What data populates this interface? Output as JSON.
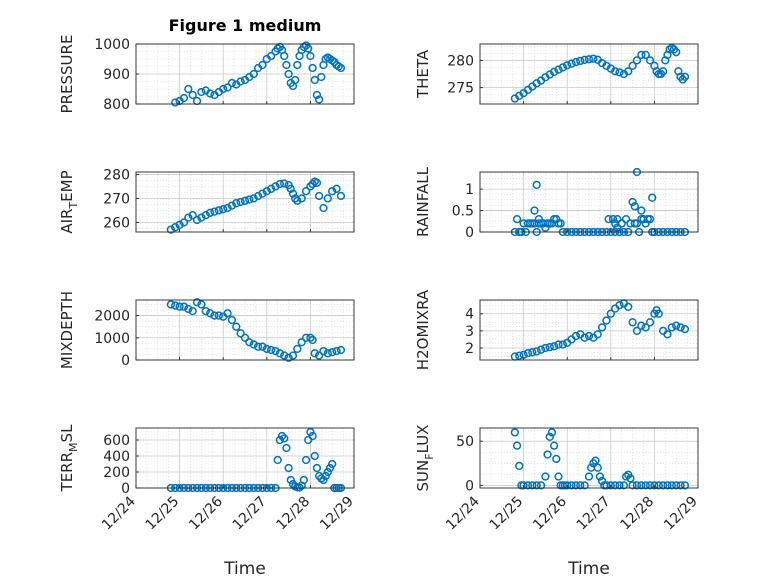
{
  "figure_title": "Figure 1 medium",
  "marker_color": "#0072BD",
  "x_axis": {
    "label": "Time",
    "ticks": [
      "12/24",
      "12/25",
      "12/26",
      "12/27",
      "12/28",
      "12/29"
    ],
    "range": [
      0,
      5
    ]
  },
  "chart_data": [
    {
      "type": "scatter",
      "ylabel": "PRESSURE",
      "ylim": [
        800,
        1000
      ],
      "yticks": [
        "800",
        "900",
        "1000"
      ],
      "grid": true,
      "series": [
        {
          "x": [
            0.9,
            1.0,
            1.1,
            1.2,
            1.3,
            1.4,
            1.5,
            1.6,
            1.7,
            1.8,
            1.9,
            2.0,
            2.1,
            2.2,
            2.3,
            2.4,
            2.5,
            2.6,
            2.7,
            2.8,
            2.9,
            3.0,
            3.1,
            3.2,
            3.25,
            3.3,
            3.35,
            3.4,
            3.45,
            3.5,
            3.55,
            3.6,
            3.65,
            3.7,
            3.75,
            3.8,
            3.85,
            3.9,
            3.95,
            4.0,
            4.05,
            4.1,
            4.15,
            4.2,
            4.25,
            4.3,
            4.35,
            4.4,
            4.45,
            4.5,
            4.55,
            4.6,
            4.65,
            4.7
          ],
          "values": [
            805,
            810,
            820,
            850,
            830,
            810,
            840,
            845,
            835,
            830,
            840,
            850,
            855,
            870,
            865,
            875,
            880,
            890,
            900,
            920,
            930,
            950,
            960,
            975,
            985,
            990,
            980,
            960,
            930,
            900,
            870,
            860,
            880,
            930,
            960,
            980,
            990,
            995,
            985,
            960,
            920,
            880,
            830,
            815,
            890,
            930,
            950,
            955,
            950,
            945,
            940,
            930,
            925,
            920
          ]
        }
      ]
    },
    {
      "type": "scatter",
      "ylabel": "THETA",
      "ylim": [
        272,
        283
      ],
      "yticks": [
        "275",
        "280"
      ],
      "grid": true,
      "series": [
        {
          "x": [
            0.8,
            0.9,
            1.0,
            1.1,
            1.2,
            1.3,
            1.4,
            1.5,
            1.6,
            1.7,
            1.8,
            1.9,
            2.0,
            2.1,
            2.2,
            2.3,
            2.4,
            2.5,
            2.6,
            2.7,
            2.8,
            2.9,
            3.0,
            3.1,
            3.2,
            3.3,
            3.4,
            3.5,
            3.6,
            3.7,
            3.8,
            3.9,
            4.0,
            4.05,
            4.1,
            4.15,
            4.2,
            4.25,
            4.3,
            4.35,
            4.4,
            4.45,
            4.5,
            4.55,
            4.6,
            4.65,
            4.7
          ],
          "values": [
            273,
            273.5,
            274,
            274.6,
            275.2,
            275.8,
            276.3,
            276.9,
            277.4,
            277.9,
            278.3,
            278.7,
            279.1,
            279.4,
            279.7,
            279.9,
            280.1,
            280.2,
            280.3,
            280.1,
            279.5,
            279,
            278.5,
            278,
            277.8,
            277.5,
            278,
            279,
            280,
            281,
            281,
            280,
            279,
            278,
            277.5,
            277.5,
            278,
            280,
            281,
            282,
            282.3,
            282,
            281.5,
            278,
            277,
            276.5,
            277
          ]
        }
      ]
    },
    {
      "type": "scatter",
      "ylabel": "AIR_TEMP",
      "ylim": [
        256,
        281
      ],
      "yticks": [
        "260",
        "270",
        "280"
      ],
      "grid": true,
      "series": [
        {
          "x": [
            0.8,
            0.9,
            1.0,
            1.1,
            1.2,
            1.3,
            1.4,
            1.5,
            1.6,
            1.7,
            1.8,
            1.9,
            2.0,
            2.1,
            2.2,
            2.3,
            2.4,
            2.5,
            2.6,
            2.7,
            2.8,
            2.9,
            3.0,
            3.1,
            3.2,
            3.3,
            3.4,
            3.5,
            3.55,
            3.6,
            3.65,
            3.7,
            3.8,
            3.9,
            4.0,
            4.05,
            4.1,
            4.15,
            4.2,
            4.3,
            4.4,
            4.5,
            4.6,
            4.7
          ],
          "values": [
            257,
            258,
            259,
            260,
            262,
            263,
            261,
            262,
            263,
            264,
            264.5,
            265,
            265.5,
            266,
            267,
            268,
            268.5,
            269,
            269.5,
            270,
            271,
            272,
            273,
            274,
            275,
            276,
            276.2,
            275.5,
            274,
            272,
            270,
            269,
            270,
            273,
            275,
            276,
            277,
            276.5,
            271,
            266,
            270,
            273,
            274,
            271
          ]
        }
      ]
    },
    {
      "type": "scatter",
      "ylabel": "RAINFALL",
      "ylim": [
        0,
        1.4
      ],
      "yticks": [
        "0",
        "0.5",
        "1"
      ],
      "grid": true,
      "series": [
        {
          "x": [
            0.8,
            0.85,
            0.9,
            0.95,
            1.0,
            1.05,
            1.1,
            1.15,
            1.2,
            1.25,
            1.3,
            1.35,
            1.4,
            1.45,
            1.5,
            1.55,
            1.6,
            1.65,
            1.7,
            1.75,
            1.8,
            1.85,
            1.9,
            2.0,
            2.1,
            2.2,
            2.3,
            2.4,
            2.5,
            2.6,
            2.7,
            2.8,
            2.9,
            3.0,
            3.05,
            3.1,
            3.15,
            3.2,
            3.25,
            3.3,
            3.35,
            3.4,
            3.45,
            3.5,
            3.55,
            3.6,
            3.65,
            3.7,
            3.75,
            3.8,
            3.85,
            3.9,
            3.95,
            4.0,
            4.1,
            4.2,
            4.3,
            4.4,
            4.5,
            4.6,
            4.7,
            1.25,
            1.3,
            1.35,
            2.95,
            3.1,
            3.15,
            3.55,
            3.6,
            3.7,
            3.95
          ],
          "values": [
            0,
            0.3,
            0,
            0,
            0.2,
            0,
            0.2,
            0.2,
            0.2,
            0.5,
            0,
            0.2,
            0.2,
            0.2,
            0.1,
            0.2,
            0.2,
            0.2,
            0.3,
            0.3,
            0.2,
            0.2,
            0,
            0,
            0,
            0,
            0,
            0,
            0,
            0,
            0,
            0,
            0,
            0,
            0.3,
            0,
            0.3,
            0,
            0.2,
            0,
            0.3,
            0,
            0.2,
            0.7,
            0.2,
            0.2,
            0,
            0.5,
            0.3,
            0.2,
            0.3,
            0.3,
            0,
            0,
            0,
            0,
            0,
            0,
            0,
            0,
            0,
            0.2,
            1.1,
            0.3,
            0.3,
            0.2,
            0.1,
            0.6,
            1.4,
            0.3,
            0.8
          ]
        }
      ]
    },
    {
      "type": "scatter",
      "ylabel": "MIXDEPTH",
      "ylim": [
        0,
        2700
      ],
      "yticks": [
        "0",
        "1000",
        "2000"
      ],
      "grid": true,
      "series": [
        {
          "x": [
            0.8,
            0.9,
            1.0,
            1.1,
            1.2,
            1.3,
            1.4,
            1.5,
            1.6,
            1.7,
            1.8,
            1.9,
            2.0,
            2.1,
            2.2,
            2.3,
            2.4,
            2.5,
            2.6,
            2.7,
            2.8,
            2.9,
            3.0,
            3.1,
            3.2,
            3.3,
            3.4,
            3.5,
            3.6,
            3.7,
            3.8,
            3.9,
            4.0,
            4.05,
            4.1,
            4.2,
            4.3,
            4.4,
            4.5,
            4.6,
            4.7
          ],
          "values": [
            2500,
            2450,
            2400,
            2400,
            2300,
            2200,
            2600,
            2500,
            2200,
            2100,
            2000,
            2000,
            1950,
            2100,
            1800,
            1500,
            1200,
            1000,
            800,
            700,
            600,
            600,
            500,
            450,
            400,
            300,
            200,
            100,
            200,
            500,
            800,
            1000,
            1000,
            900,
            300,
            200,
            400,
            300,
            350,
            400,
            450
          ]
        }
      ]
    },
    {
      "type": "scatter",
      "ylabel": "H2OMIXRA",
      "ylim": [
        1.3,
        4.8
      ],
      "yticks": [
        "2",
        "3",
        "4"
      ],
      "grid": true,
      "series": [
        {
          "x": [
            0.8,
            0.9,
            1.0,
            1.1,
            1.2,
            1.3,
            1.4,
            1.5,
            1.6,
            1.7,
            1.8,
            1.9,
            2.0,
            2.1,
            2.2,
            2.3,
            2.4,
            2.5,
            2.6,
            2.7,
            2.8,
            2.9,
            3.0,
            3.1,
            3.2,
            3.3,
            3.4,
            3.5,
            3.6,
            3.7,
            3.8,
            3.9,
            4.0,
            4.05,
            4.1,
            4.2,
            4.3,
            4.4,
            4.5,
            4.6,
            4.7
          ],
          "values": [
            1.5,
            1.55,
            1.6,
            1.7,
            1.75,
            1.8,
            1.9,
            2.0,
            2.05,
            2.1,
            2.2,
            2.2,
            2.3,
            2.5,
            2.7,
            2.8,
            2.6,
            2.7,
            2.6,
            2.8,
            3.2,
            3.6,
            4.0,
            4.3,
            4.5,
            4.6,
            4.4,
            3.5,
            3.0,
            3.3,
            3.2,
            3.5,
            4.0,
            4.2,
            4.0,
            3.0,
            2.8,
            3.2,
            3.3,
            3.2,
            3.1
          ]
        }
      ]
    },
    {
      "type": "scatter",
      "ylabel": "TERR_MSL",
      "ylim": [
        0,
        750
      ],
      "yticks": [
        "0",
        "200",
        "400",
        "600"
      ],
      "grid": true,
      "series": [
        {
          "x": [
            0.8,
            0.9,
            1.0,
            1.1,
            1.2,
            1.3,
            1.4,
            1.5,
            1.6,
            1.7,
            1.8,
            1.9,
            2.0,
            2.1,
            2.2,
            2.3,
            2.4,
            2.5,
            2.6,
            2.7,
            2.8,
            2.9,
            3.0,
            3.1,
            3.2,
            3.25,
            3.3,
            3.35,
            3.4,
            3.45,
            3.5,
            3.55,
            3.6,
            3.65,
            3.7,
            3.75,
            3.8,
            3.85,
            3.9,
            3.95,
            4.0,
            4.05,
            4.1,
            4.15,
            4.2,
            4.25,
            4.3,
            4.35,
            4.4,
            4.45,
            4.5,
            4.55,
            4.6,
            4.65,
            4.7
          ],
          "values": [
            0,
            0,
            0,
            0,
            0,
            0,
            0,
            0,
            0,
            0,
            0,
            0,
            0,
            0,
            0,
            0,
            0,
            0,
            0,
            0,
            0,
            0,
            0,
            0,
            0,
            350,
            600,
            650,
            620,
            500,
            250,
            100,
            50,
            20,
            10,
            5,
            30,
            100,
            350,
            600,
            700,
            650,
            400,
            250,
            150,
            120,
            100,
            150,
            200,
            250,
            300,
            0,
            0,
            0,
            0
          ]
        }
      ]
    },
    {
      "type": "scatter",
      "ylabel": "SUN_FLUX",
      "ylim": [
        -3,
        65
      ],
      "yticks": [
        "0",
        "50"
      ],
      "grid": true,
      "series": [
        {
          "x": [
            0.8,
            0.85,
            0.9,
            0.95,
            1.0,
            1.1,
            1.2,
            1.3,
            1.4,
            1.5,
            1.55,
            1.6,
            1.65,
            1.7,
            1.75,
            1.8,
            1.85,
            1.9,
            1.95,
            2.0,
            2.1,
            2.2,
            2.3,
            2.4,
            2.5,
            2.55,
            2.6,
            2.65,
            2.7,
            2.75,
            2.8,
            2.85,
            2.9,
            3.0,
            3.1,
            3.2,
            3.3,
            3.35,
            3.4,
            3.45,
            3.5,
            3.6,
            3.7,
            3.8,
            3.9,
            4.0,
            4.1,
            4.2,
            4.3,
            4.4,
            4.5,
            4.6,
            4.7
          ],
          "values": [
            60,
            45,
            22,
            0,
            0,
            0,
            0,
            0,
            0,
            10,
            35,
            55,
            60,
            45,
            30,
            10,
            0,
            0,
            0,
            0,
            0,
            0,
            0,
            0,
            10,
            20,
            25,
            28,
            20,
            10,
            5,
            0,
            0,
            0,
            0,
            0,
            0,
            10,
            12,
            8,
            0,
            0,
            0,
            0,
            0,
            0,
            0,
            0,
            0,
            0,
            0,
            0,
            0
          ]
        }
      ]
    }
  ]
}
